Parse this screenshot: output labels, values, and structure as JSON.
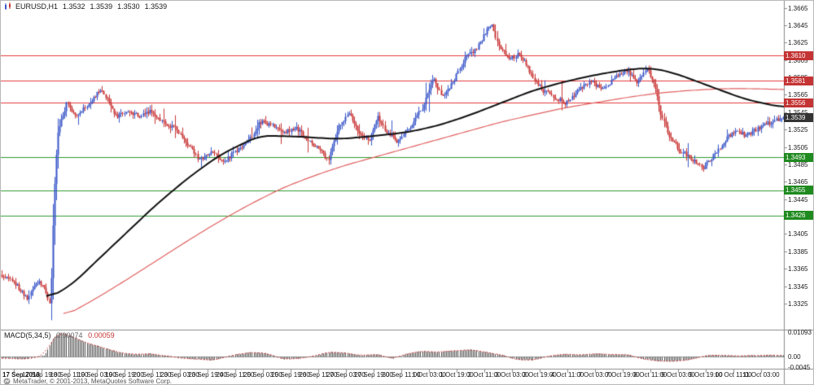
{
  "header": {
    "symbol_timeframe": "EURUSD,H1",
    "open": "1.3532",
    "high": "1.3539",
    "low": "1.3530",
    "close": "1.3539"
  },
  "footer": {
    "copyright": "MetaTrader, © 2001-2013, MetaQuotes Software Corp."
  },
  "colors": {
    "bull": "#3a57c8",
    "bear": "#c93636",
    "ma_black": "#111111",
    "ma_red": "#e06060",
    "resistance_line": "#e23b3b",
    "support_line": "#2f9b2f",
    "badge_resistance": "#c43434",
    "badge_support": "#1f8a1f",
    "badge_current": "#333333",
    "macd_bar": "#4a4a4a",
    "macd_signal": "#d23b3b",
    "axis_border": "#8a8a8a",
    "zero_line": "#aaaaaa"
  },
  "chart_data": {
    "type": "candlestick",
    "symbol": "EURUSD",
    "timeframe": "H1",
    "ohlc": {
      "open": 1.3532,
      "high": 1.3539,
      "low": 1.353,
      "close": 1.3539
    },
    "candle_count": 460,
    "y_axis": {
      "min": 1.3295,
      "max": 1.3673,
      "tick_labels": [
        "1.3665",
        "1.3645",
        "1.3625",
        "1.3605",
        "1.3585",
        "1.3565",
        "1.3545",
        "1.3525",
        "1.3505",
        "1.3485",
        "1.3465",
        "1.3445",
        "1.3425",
        "1.3405",
        "1.3385",
        "1.3365",
        "1.3345",
        "1.3325"
      ]
    },
    "x_axis": {
      "labels": [
        "17 Sep 2013",
        "17 Sep 19:00",
        "18 Sep 11:00",
        "19 Sep 03:00",
        "19 Sep 19:00",
        "20 Sep 11:00",
        "23 Sep 03:00",
        "23 Sep 19:00",
        "24 Sep 11:00",
        "25 Sep 03:00",
        "25 Sep 19:00",
        "26 Sep 11:00",
        "27 Sep 03:00",
        "27 Sep 19:00",
        "30 Sep 11:00",
        "1 Oct 03:00",
        "1 Oct 19:00",
        "2 Oct 11:00",
        "3 Oct 03:00",
        "3 Oct 19:00",
        "4 Oct 11:00",
        "7 Oct 03:00",
        "7 Oct 19:00",
        "8 Oct 11:00",
        "9 Oct 03:00",
        "9 Oct 19:00",
        "10 Oct 11:00",
        "11 Oct 03:00"
      ]
    },
    "levels": {
      "resistance": [
        1.361,
        1.3581,
        1.3556
      ],
      "support": [
        1.3493,
        1.3455,
        1.3426
      ],
      "current": 1.3539
    },
    "price_path_anchors": [
      [
        0.0,
        1.3358
      ],
      [
        0.015,
        1.335
      ],
      [
        0.033,
        1.333
      ],
      [
        0.047,
        1.3352
      ],
      [
        0.057,
        1.3338
      ],
      [
        0.062,
        1.3322
      ],
      [
        0.066,
        1.3435
      ],
      [
        0.071,
        1.352
      ],
      [
        0.083,
        1.3555
      ],
      [
        0.094,
        1.3542
      ],
      [
        0.109,
        1.3552
      ],
      [
        0.125,
        1.357
      ],
      [
        0.133,
        1.3563
      ],
      [
        0.146,
        1.354
      ],
      [
        0.161,
        1.3546
      ],
      [
        0.177,
        1.354
      ],
      [
        0.192,
        1.3546
      ],
      [
        0.208,
        1.3532
      ],
      [
        0.224,
        1.3526
      ],
      [
        0.239,
        1.3506
      ],
      [
        0.253,
        1.349
      ],
      [
        0.268,
        1.35
      ],
      [
        0.283,
        1.3486
      ],
      [
        0.299,
        1.35
      ],
      [
        0.317,
        1.3514
      ],
      [
        0.331,
        1.3534
      ],
      [
        0.345,
        1.353
      ],
      [
        0.362,
        1.3521
      ],
      [
        0.376,
        1.3528
      ],
      [
        0.393,
        1.3512
      ],
      [
        0.408,
        1.35
      ],
      [
        0.418,
        1.349
      ],
      [
        0.431,
        1.3528
      ],
      [
        0.445,
        1.3544
      ],
      [
        0.457,
        1.3521
      ],
      [
        0.47,
        1.3512
      ],
      [
        0.481,
        1.354
      ],
      [
        0.491,
        1.3524
      ],
      [
        0.506,
        1.3512
      ],
      [
        0.523,
        1.3528
      ],
      [
        0.538,
        1.355
      ],
      [
        0.553,
        1.3584
      ],
      [
        0.564,
        1.3562
      ],
      [
        0.578,
        1.358
      ],
      [
        0.593,
        1.3607
      ],
      [
        0.607,
        1.3618
      ],
      [
        0.621,
        1.3639
      ],
      [
        0.627,
        1.3645
      ],
      [
        0.636,
        1.362
      ],
      [
        0.65,
        1.3606
      ],
      [
        0.663,
        1.3612
      ],
      [
        0.678,
        1.3588
      ],
      [
        0.691,
        1.3571
      ],
      [
        0.707,
        1.3562
      ],
      [
        0.722,
        1.3556
      ],
      [
        0.738,
        1.357
      ],
      [
        0.754,
        1.358
      ],
      [
        0.769,
        1.3572
      ],
      [
        0.785,
        1.3585
      ],
      [
        0.8,
        1.3592
      ],
      [
        0.813,
        1.358
      ],
      [
        0.826,
        1.3595
      ],
      [
        0.837,
        1.357
      ],
      [
        0.844,
        1.354
      ],
      [
        0.854,
        1.3518
      ],
      [
        0.868,
        1.35
      ],
      [
        0.883,
        1.3492
      ],
      [
        0.897,
        1.348
      ],
      [
        0.912,
        1.3496
      ],
      [
        0.927,
        1.3514
      ],
      [
        0.94,
        1.3524
      ],
      [
        0.952,
        1.3518
      ],
      [
        0.967,
        1.3526
      ],
      [
        0.981,
        1.3532
      ],
      [
        1.0,
        1.3539
      ]
    ],
    "ma_black_anchors": [
      [
        0.058,
        1.333
      ],
      [
        0.09,
        1.3346
      ],
      [
        0.12,
        1.3372
      ],
      [
        0.16,
        1.3406
      ],
      [
        0.2,
        1.344
      ],
      [
        0.24,
        1.347
      ],
      [
        0.28,
        1.3496
      ],
      [
        0.33,
        1.3518
      ],
      [
        0.38,
        1.3517
      ],
      [
        0.43,
        1.3514
      ],
      [
        0.47,
        1.3517
      ],
      [
        0.52,
        1.3522
      ],
      [
        0.56,
        1.353
      ],
      [
        0.6,
        1.3542
      ],
      [
        0.64,
        1.3556
      ],
      [
        0.68,
        1.357
      ],
      [
        0.72,
        1.358
      ],
      [
        0.76,
        1.3588
      ],
      [
        0.8,
        1.3594
      ],
      [
        0.83,
        1.3596
      ],
      [
        0.86,
        1.359
      ],
      [
        0.89,
        1.358
      ],
      [
        0.92,
        1.357
      ],
      [
        0.95,
        1.356
      ],
      [
        1.0,
        1.355
      ]
    ],
    "ma_red_anchors": [
      [
        0.08,
        1.331
      ],
      [
        0.12,
        1.333
      ],
      [
        0.16,
        1.3352
      ],
      [
        0.2,
        1.3375
      ],
      [
        0.24,
        1.3398
      ],
      [
        0.28,
        1.342
      ],
      [
        0.32,
        1.344
      ],
      [
        0.36,
        1.3458
      ],
      [
        0.4,
        1.3472
      ],
      [
        0.44,
        1.3484
      ],
      [
        0.48,
        1.3494
      ],
      [
        0.52,
        1.3504
      ],
      [
        0.56,
        1.3514
      ],
      [
        0.6,
        1.3524
      ],
      [
        0.64,
        1.3534
      ],
      [
        0.68,
        1.3542
      ],
      [
        0.72,
        1.355
      ],
      [
        0.76,
        1.3556
      ],
      [
        0.8,
        1.3562
      ],
      [
        0.84,
        1.3567
      ],
      [
        0.88,
        1.357
      ],
      [
        0.92,
        1.3572
      ],
      [
        0.96,
        1.3572
      ],
      [
        1.0,
        1.3571
      ]
    ],
    "indicator": {
      "name": "MACD",
      "label": "MACD(5,34,5)",
      "value": "0.00074",
      "signal_value": "0.00059",
      "max": 0.01093,
      "min": -0.0045,
      "axis_labels": [
        "0.01093",
        "0.00",
        "-0.0045"
      ],
      "histogram_anchors": [
        [
          0.0,
          -0.0005
        ],
        [
          0.03,
          -0.001
        ],
        [
          0.055,
          0.0005
        ],
        [
          0.065,
          0.008
        ],
        [
          0.075,
          0.0109
        ],
        [
          0.09,
          0.009
        ],
        [
          0.11,
          0.006
        ],
        [
          0.13,
          0.004
        ],
        [
          0.15,
          0.002
        ],
        [
          0.17,
          0.001
        ],
        [
          0.19,
          0.0015
        ],
        [
          0.21,
          0.0005
        ],
        [
          0.23,
          -0.0005
        ],
        [
          0.25,
          -0.001
        ],
        [
          0.27,
          -0.0015
        ],
        [
          0.3,
          0.001
        ],
        [
          0.32,
          0.002
        ],
        [
          0.34,
          0.0015
        ],
        [
          0.36,
          -0.001
        ],
        [
          0.38,
          -0.0008
        ],
        [
          0.4,
          0.0005
        ],
        [
          0.42,
          0.002
        ],
        [
          0.44,
          0.0018
        ],
        [
          0.46,
          0.0005
        ],
        [
          0.48,
          0.0012
        ],
        [
          0.5,
          -0.0008
        ],
        [
          0.52,
          0.0015
        ],
        [
          0.54,
          0.0025
        ],
        [
          0.56,
          0.002
        ],
        [
          0.58,
          0.0028
        ],
        [
          0.6,
          0.0032
        ],
        [
          0.62,
          0.002
        ],
        [
          0.64,
          0.0008
        ],
        [
          0.66,
          -0.0012
        ],
        [
          0.68,
          -0.0015
        ],
        [
          0.7,
          0.0005
        ],
        [
          0.72,
          0.0012
        ],
        [
          0.74,
          0.0008
        ],
        [
          0.76,
          0.0015
        ],
        [
          0.78,
          0.001
        ],
        [
          0.8,
          0.0012
        ],
        [
          0.82,
          -0.0008
        ],
        [
          0.84,
          -0.0018
        ],
        [
          0.86,
          -0.002
        ],
        [
          0.88,
          -0.0012
        ],
        [
          0.9,
          0.0005
        ],
        [
          0.92,
          0.0008
        ],
        [
          0.94,
          0.0005
        ],
        [
          0.96,
          0.0006
        ],
        [
          1.0,
          0.00074
        ]
      ]
    }
  }
}
